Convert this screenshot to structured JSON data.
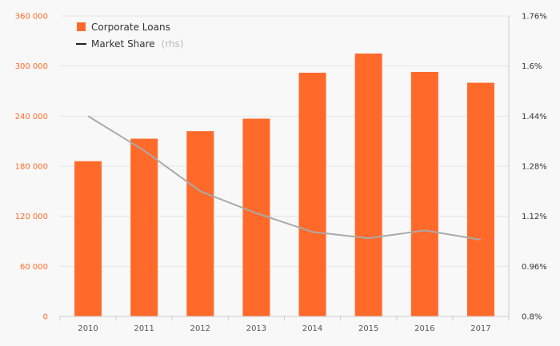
{
  "colors": {
    "bar": "#ff6a2a",
    "line": "#a9a9a9",
    "grid": "#e5e5e5",
    "left_axis_text": "#ff6a2a",
    "right_axis_text": "#333333",
    "background": "#f8f8f8"
  },
  "chart_data": {
    "type": "bar",
    "title": "",
    "grid": true,
    "legend_placement": "top-left",
    "categories": [
      "2010",
      "2011",
      "2012",
      "2013",
      "2014",
      "2015",
      "2016",
      "2017"
    ],
    "series": [
      {
        "name": "Corporate Loans",
        "type": "bar",
        "axis": "left",
        "values": [
          186000,
          213000,
          222000,
          237000,
          292000,
          315000,
          293000,
          280000
        ]
      },
      {
        "name": "Market Share",
        "name_suffix": "(rhs)",
        "type": "line",
        "axis": "right",
        "values": [
          1.44,
          1.33,
          1.2,
          1.13,
          1.07,
          1.05,
          1.075,
          1.045
        ]
      }
    ],
    "y_left": {
      "min": 0,
      "max": 360000,
      "ticks": [
        0,
        60000,
        120000,
        180000,
        240000,
        300000,
        360000
      ],
      "tick_labels": [
        "0",
        "60 000",
        "120 000",
        "180 000",
        "240 000",
        "300 000",
        "360 000"
      ]
    },
    "y_right": {
      "min": 0.8,
      "max": 1.76,
      "ticks": [
        0.8,
        0.96,
        1.12,
        1.28,
        1.44,
        1.6,
        1.76
      ],
      "tick_labels": [
        "0.8%",
        "0.96%",
        "1.12%",
        "1.28%",
        "1.44%",
        "1.6%",
        "1.76%"
      ]
    }
  }
}
